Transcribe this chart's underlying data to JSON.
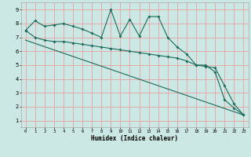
{
  "xlabel": "Humidex (Indice chaleur)",
  "background_color": "#cce8e4",
  "grid_color": "#e8a0a0",
  "line_color": "#1a6b5a",
  "xlim": [
    -0.5,
    23.5
  ],
  "ylim": [
    0.5,
    9.5
  ],
  "xticks": [
    0,
    1,
    2,
    3,
    4,
    5,
    6,
    7,
    8,
    9,
    10,
    11,
    12,
    13,
    14,
    15,
    16,
    17,
    18,
    19,
    20,
    21,
    22,
    23
  ],
  "yticks": [
    1,
    2,
    3,
    4,
    5,
    6,
    7,
    8,
    9
  ],
  "line1_x": [
    0,
    1,
    2,
    3,
    4,
    5,
    6,
    7,
    8,
    9,
    10,
    11,
    12,
    13,
    14,
    15,
    16,
    17,
    18,
    19,
    20,
    21,
    22,
    23
  ],
  "line1_y": [
    7.5,
    8.2,
    7.8,
    7.9,
    8.0,
    7.8,
    7.6,
    7.3,
    7.0,
    9.0,
    7.1,
    8.3,
    7.1,
    8.5,
    8.5,
    7.0,
    6.3,
    5.8,
    5.0,
    5.0,
    4.5,
    2.5,
    1.9,
    1.4
  ],
  "line2_x": [
    0,
    1,
    2,
    3,
    4,
    5,
    6,
    7,
    8,
    9,
    10,
    11,
    12,
    13,
    14,
    15,
    16,
    17,
    18,
    19,
    20,
    21,
    22,
    23
  ],
  "line2_y": [
    7.5,
    7.0,
    6.8,
    6.7,
    6.7,
    6.6,
    6.5,
    6.4,
    6.3,
    6.2,
    6.1,
    6.0,
    5.9,
    5.8,
    5.7,
    5.6,
    5.5,
    5.3,
    5.0,
    4.9,
    4.8,
    3.5,
    2.2,
    1.4
  ],
  "line3_x": [
    0,
    23
  ],
  "line3_y": [
    6.8,
    1.4
  ]
}
